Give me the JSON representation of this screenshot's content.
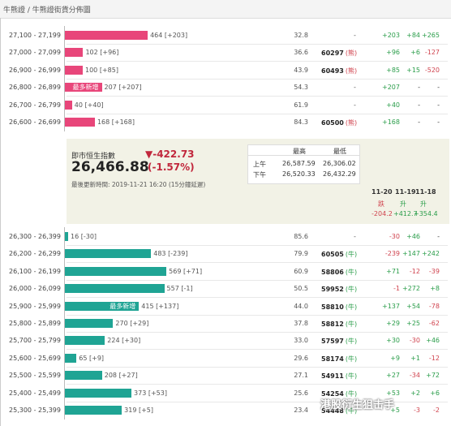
{
  "breadcrumb": "牛熊證 / 牛熊證街貨分佈圖",
  "colors": {
    "bull": "#1fa494",
    "bear": "#e8467a",
    "up": "#2a9d4a",
    "down": "#d0434e"
  },
  "bear_rows": [
    {
      "range": "27,100 - 27,199",
      "bar_text": "464 [+203]",
      "bar_value": 464,
      "pct": "32.8",
      "code": "-",
      "tag": "",
      "c1": "+203",
      "c2": "+84",
      "c3": "+265"
    },
    {
      "range": "27,000 - 27,099",
      "bar_text": "102 [+96]",
      "bar_value": 102,
      "pct": "36.6",
      "code": "60297",
      "tag": "(熊)",
      "c1": "+96",
      "c2": "+6",
      "c3": "-127"
    },
    {
      "range": "26,900 - 26,999",
      "bar_text": "100 [+85]",
      "bar_value": 100,
      "pct": "43.9",
      "code": "60493",
      "tag": "(熊)",
      "c1": "+85",
      "c2": "+15",
      "c3": "-520"
    },
    {
      "range": "26,800 - 26,899",
      "bar_text": "207 [+207]",
      "bar_value": 207,
      "inlabel": "最多新增",
      "pct": "54.3",
      "code": "-",
      "tag": "",
      "c1": "+207",
      "c2": "-",
      "c3": "-"
    },
    {
      "range": "26,700 - 26,799",
      "bar_text": "40 [+40]",
      "bar_value": 40,
      "pct": "61.9",
      "code": "-",
      "tag": "",
      "c1": "+40",
      "c2": "-",
      "c3": "-"
    },
    {
      "range": "26,600 - 26,699",
      "bar_text": "168 [+168]",
      "bar_value": 168,
      "pct": "84.3",
      "code": "60500",
      "tag": "(熊)",
      "c1": "+168",
      "c2": "-",
      "c3": "-"
    }
  ],
  "info": {
    "index_label": "即市恒生指數",
    "index_value": "26,466.88",
    "change": "▼-422.73",
    "change_pct": "(-1.57%)",
    "updated": "最後更新時間: 2019-11-21 16:20 (15分鐘延遲)",
    "table": {
      "headers": [
        "最高",
        "最低"
      ],
      "rows": [
        {
          "label": "上午",
          "high": "26,587.59",
          "low": "26,306.02"
        },
        {
          "label": "下午",
          "high": "26,520.33",
          "low": "26,432.29"
        }
      ]
    },
    "days": [
      "11-20",
      "11-19",
      "11-18"
    ],
    "day_status": [
      "跌",
      "升",
      "升"
    ],
    "day_change": [
      "-204.2",
      "+412.7",
      "+354.4"
    ]
  },
  "bull_rows": [
    {
      "range": "26,300 - 26,399",
      "bar_text": "16 [-30]",
      "bar_value": 16,
      "pct": "85.6",
      "code": "-",
      "tag": "",
      "c1": "-30",
      "c2": "+46",
      "c3": "-"
    },
    {
      "range": "26,200 - 26,299",
      "bar_text": "483 [-239]",
      "bar_value": 483,
      "pct": "79.9",
      "code": "60505",
      "tag": "(牛)",
      "c1": "-239",
      "c2": "+147",
      "c3": "+242"
    },
    {
      "range": "26,100 - 26,199",
      "bar_text": "569 [+71]",
      "bar_value": 569,
      "pct": "60.9",
      "code": "58806",
      "tag": "(牛)",
      "c1": "+71",
      "c2": "-12",
      "c3": "-39"
    },
    {
      "range": "26,000 - 26,099",
      "bar_text": "557 [-1]",
      "bar_value": 557,
      "pct": "50.5",
      "code": "59952",
      "tag": "(牛)",
      "c1": "-1",
      "c2": "+272",
      "c3": "+8"
    },
    {
      "range": "25,900 - 25,999",
      "bar_text": "415 [+137]",
      "bar_value": 415,
      "inlabel": "最多新增",
      "pct": "44.0",
      "code": "58810",
      "tag": "(牛)",
      "c1": "+137",
      "c2": "+54",
      "c3": "-78"
    },
    {
      "range": "25,800 - 25,899",
      "bar_text": "270 [+29]",
      "bar_value": 270,
      "pct": "37.8",
      "code": "58812",
      "tag": "(牛)",
      "c1": "+29",
      "c2": "+25",
      "c3": "-62"
    },
    {
      "range": "25,700 - 25,799",
      "bar_text": "224 [+30]",
      "bar_value": 224,
      "pct": "33.0",
      "code": "57597",
      "tag": "(牛)",
      "c1": "+30",
      "c2": "-30",
      "c3": "+46"
    },
    {
      "range": "25,600 - 25,699",
      "bar_text": "65 [+9]",
      "bar_value": 65,
      "pct": "29.6",
      "code": "58174",
      "tag": "(牛)",
      "c1": "+9",
      "c2": "+1",
      "c3": "-12"
    },
    {
      "range": "25,500 - 25,599",
      "bar_text": "208 [+27]",
      "bar_value": 208,
      "pct": "27.1",
      "code": "54911",
      "tag": "(牛)",
      "c1": "+27",
      "c2": "-34",
      "c3": "+72"
    },
    {
      "range": "25,400 - 25,499",
      "bar_text": "373 [+53]",
      "bar_value": 373,
      "pct": "25.6",
      "code": "54254",
      "tag": "(牛)",
      "c1": "+53",
      "c2": "+2",
      "c3": "+6"
    },
    {
      "range": "25,300 - 25,399",
      "bar_text": "319 [+5]",
      "bar_value": 319,
      "pct": "23.4",
      "code": "54448",
      "tag": "(牛)",
      "c1": "+5",
      "c2": "-3",
      "c3": "-2"
    }
  ],
  "watermark": "港股衍生狙击手"
}
